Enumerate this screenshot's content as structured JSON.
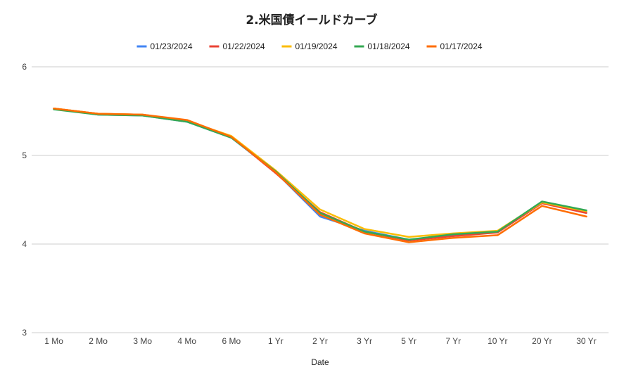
{
  "chart_data": {
    "type": "line",
    "title": "2.米国債イールドカーブ",
    "xlabel": "Date",
    "ylabel": "",
    "ylim": [
      3,
      6
    ],
    "yticks": [
      3,
      4,
      5,
      6
    ],
    "grid": true,
    "legend_position": "top",
    "categories": [
      "1 Mo",
      "2 Mo",
      "3 Mo",
      "4 Mo",
      "6 Mo",
      "1 Yr",
      "2 Yr",
      "3 Yr",
      "5 Yr",
      "7 Yr",
      "10 Yr",
      "20 Yr",
      "30 Yr"
    ],
    "series": [
      {
        "name": "01/23/2024",
        "color": "#4285f4",
        "values": [
          5.53,
          5.46,
          5.45,
          5.38,
          5.2,
          4.81,
          4.31,
          4.15,
          4.05,
          4.1,
          4.14,
          4.47,
          4.36
        ]
      },
      {
        "name": "01/22/2024",
        "color": "#ea4335",
        "values": [
          5.53,
          5.47,
          5.46,
          5.39,
          5.21,
          4.8,
          4.36,
          4.14,
          4.04,
          4.09,
          4.13,
          4.46,
          4.35
        ]
      },
      {
        "name": "01/19/2024",
        "color": "#fbbc04",
        "values": [
          5.53,
          5.47,
          5.46,
          5.39,
          5.22,
          4.83,
          4.39,
          4.17,
          4.08,
          4.12,
          4.15,
          4.47,
          4.37
        ]
      },
      {
        "name": "01/18/2024",
        "color": "#34a853",
        "values": [
          5.52,
          5.46,
          5.45,
          5.38,
          5.2,
          4.82,
          4.35,
          4.14,
          4.05,
          4.11,
          4.14,
          4.48,
          4.38
        ]
      },
      {
        "name": "01/17/2024",
        "color": "#ff6d01",
        "values": [
          5.53,
          5.47,
          5.46,
          5.4,
          5.21,
          4.81,
          4.33,
          4.12,
          4.02,
          4.07,
          4.1,
          4.43,
          4.31
        ]
      }
    ]
  }
}
